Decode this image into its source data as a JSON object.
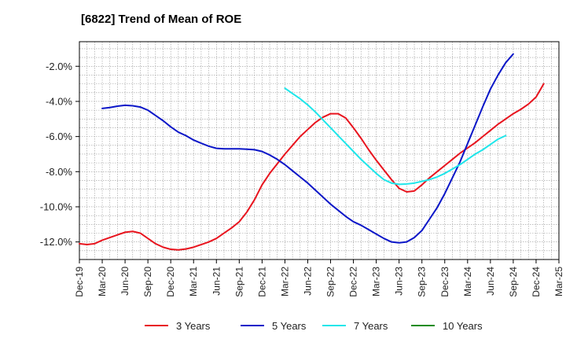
{
  "chart_data": {
    "type": "line",
    "title": "[6822]  Trend of Mean of ROE",
    "xlabel": "",
    "ylabel": "",
    "x_ticks": [
      "Dec-19",
      "Mar-20",
      "Jun-20",
      "Sep-20",
      "Dec-20",
      "Mar-21",
      "Jun-21",
      "Sep-21",
      "Dec-21",
      "Mar-22",
      "Jun-22",
      "Sep-22",
      "Dec-22",
      "Mar-23",
      "Jun-23",
      "Sep-23",
      "Dec-23",
      "Mar-24",
      "Jun-24",
      "Sep-24",
      "Dec-24",
      "Mar-25"
    ],
    "y_ticks": [
      "-2.0%",
      "-4.0%",
      "-6.0%",
      "-8.0%",
      "-10.0%",
      "-12.0%"
    ],
    "y_tick_values": [
      -2,
      -4,
      -6,
      -8,
      -10,
      -12
    ],
    "ylim": [
      -13.0,
      -0.6
    ],
    "grid": true,
    "legend_position": "bottom",
    "series": [
      {
        "name": "3 Years",
        "color": "#e8141e",
        "points": [
          [
            "Dec-19",
            -12.1
          ],
          [
            "Jan-20",
            -12.15
          ],
          [
            "Feb-20",
            -12.1
          ],
          [
            "Mar-20",
            -11.9
          ],
          [
            "Apr-20",
            -11.75
          ],
          [
            "May-20",
            -11.6
          ],
          [
            "Jun-20",
            -11.45
          ],
          [
            "Jul-20",
            -11.4
          ],
          [
            "Aug-20",
            -11.5
          ],
          [
            "Sep-20",
            -11.8
          ],
          [
            "Oct-20",
            -12.1
          ],
          [
            "Nov-20",
            -12.3
          ],
          [
            "Dec-20",
            -12.42
          ],
          [
            "Jan-21",
            -12.45
          ],
          [
            "Feb-21",
            -12.4
          ],
          [
            "Mar-21",
            -12.3
          ],
          [
            "Apr-21",
            -12.15
          ],
          [
            "May-21",
            -12.0
          ],
          [
            "Jun-21",
            -11.8
          ],
          [
            "Jul-21",
            -11.5
          ],
          [
            "Aug-21",
            -11.2
          ],
          [
            "Sep-21",
            -10.85
          ],
          [
            "Oct-21",
            -10.3
          ],
          [
            "Nov-21",
            -9.6
          ],
          [
            "Dec-21",
            -8.75
          ],
          [
            "Jan-22",
            -8.1
          ],
          [
            "Feb-22",
            -7.55
          ],
          [
            "Mar-22",
            -7.0
          ],
          [
            "Apr-22",
            -6.5
          ],
          [
            "May-22",
            -6.0
          ],
          [
            "Jun-22",
            -5.6
          ],
          [
            "Jul-22",
            -5.2
          ],
          [
            "Aug-22",
            -4.9
          ],
          [
            "Sep-22",
            -4.7
          ],
          [
            "Oct-22",
            -4.7
          ],
          [
            "Nov-22",
            -4.95
          ],
          [
            "Dec-22",
            -5.5
          ],
          [
            "Jan-23",
            -6.1
          ],
          [
            "Feb-23",
            -6.75
          ],
          [
            "Mar-23",
            -7.35
          ],
          [
            "Apr-23",
            -7.9
          ],
          [
            "May-23",
            -8.45
          ],
          [
            "Jun-23",
            -8.95
          ],
          [
            "Jul-23",
            -9.15
          ],
          [
            "Aug-23",
            -9.1
          ],
          [
            "Sep-23",
            -8.75
          ],
          [
            "Oct-23",
            -8.35
          ],
          [
            "Nov-23",
            -8.0
          ],
          [
            "Dec-23",
            -7.65
          ],
          [
            "Jan-24",
            -7.3
          ],
          [
            "Feb-24",
            -6.95
          ],
          [
            "Mar-24",
            -6.65
          ],
          [
            "Apr-24",
            -6.35
          ],
          [
            "May-24",
            -6.0
          ],
          [
            "Jun-24",
            -5.65
          ],
          [
            "Jul-24",
            -5.3
          ],
          [
            "Aug-24",
            -5.0
          ],
          [
            "Sep-24",
            -4.7
          ],
          [
            "Oct-24",
            -4.45
          ],
          [
            "Nov-24",
            -4.15
          ],
          [
            "Dec-24",
            -3.75
          ],
          [
            "Jan-25",
            -3.0
          ]
        ]
      },
      {
        "name": "5 Years",
        "color": "#0b16c8",
        "points": [
          [
            "Mar-20",
            -4.4
          ],
          [
            "Apr-20",
            -4.35
          ],
          [
            "May-20",
            -4.27
          ],
          [
            "Jun-20",
            -4.22
          ],
          [
            "Jul-20",
            -4.25
          ],
          [
            "Aug-20",
            -4.32
          ],
          [
            "Sep-20",
            -4.5
          ],
          [
            "Oct-20",
            -4.8
          ],
          [
            "Nov-20",
            -5.1
          ],
          [
            "Dec-20",
            -5.45
          ],
          [
            "Jan-21",
            -5.75
          ],
          [
            "Feb-21",
            -5.95
          ],
          [
            "Mar-21",
            -6.2
          ],
          [
            "Apr-21",
            -6.38
          ],
          [
            "May-21",
            -6.55
          ],
          [
            "Jun-21",
            -6.67
          ],
          [
            "Jul-21",
            -6.7
          ],
          [
            "Aug-21",
            -6.7
          ],
          [
            "Sep-21",
            -6.7
          ],
          [
            "Oct-21",
            -6.72
          ],
          [
            "Nov-21",
            -6.75
          ],
          [
            "Dec-21",
            -6.85
          ],
          [
            "Jan-22",
            -7.05
          ],
          [
            "Feb-22",
            -7.3
          ],
          [
            "Mar-22",
            -7.6
          ],
          [
            "Apr-22",
            -7.95
          ],
          [
            "May-22",
            -8.3
          ],
          [
            "Jun-22",
            -8.65
          ],
          [
            "Jul-22",
            -9.05
          ],
          [
            "Aug-22",
            -9.45
          ],
          [
            "Sep-22",
            -9.85
          ],
          [
            "Oct-22",
            -10.2
          ],
          [
            "Nov-22",
            -10.55
          ],
          [
            "Dec-22",
            -10.85
          ],
          [
            "Jan-23",
            -11.05
          ],
          [
            "Feb-23",
            -11.3
          ],
          [
            "Mar-23",
            -11.55
          ],
          [
            "Apr-23",
            -11.8
          ],
          [
            "May-23",
            -12.0
          ],
          [
            "Jun-23",
            -12.05
          ],
          [
            "Jul-23",
            -12.0
          ],
          [
            "Aug-23",
            -11.75
          ],
          [
            "Sep-23",
            -11.35
          ],
          [
            "Oct-23",
            -10.7
          ],
          [
            "Nov-23",
            -10.05
          ],
          [
            "Dec-23",
            -9.25
          ],
          [
            "Jan-24",
            -8.35
          ],
          [
            "Feb-24",
            -7.45
          ],
          [
            "Mar-24",
            -6.4
          ],
          [
            "Apr-24",
            -5.35
          ],
          [
            "May-24",
            -4.3
          ],
          [
            "Jun-24",
            -3.3
          ],
          [
            "Jul-24",
            -2.5
          ],
          [
            "Aug-24",
            -1.8
          ],
          [
            "Sep-24",
            -1.3
          ]
        ]
      },
      {
        "name": "7 Years",
        "color": "#1ee6ea",
        "points": [
          [
            "Mar-22",
            -3.25
          ],
          [
            "Apr-22",
            -3.55
          ],
          [
            "May-22",
            -3.85
          ],
          [
            "Jun-22",
            -4.2
          ],
          [
            "Jul-22",
            -4.6
          ],
          [
            "Aug-22",
            -5.05
          ],
          [
            "Sep-22",
            -5.5
          ],
          [
            "Oct-22",
            -5.95
          ],
          [
            "Nov-22",
            -6.4
          ],
          [
            "Dec-22",
            -6.85
          ],
          [
            "Jan-23",
            -7.3
          ],
          [
            "Feb-23",
            -7.7
          ],
          [
            "Mar-23",
            -8.1
          ],
          [
            "Apr-23",
            -8.45
          ],
          [
            "May-23",
            -8.65
          ],
          [
            "Jun-23",
            -8.72
          ],
          [
            "Jul-23",
            -8.7
          ],
          [
            "Aug-23",
            -8.65
          ],
          [
            "Sep-23",
            -8.55
          ],
          [
            "Oct-23",
            -8.45
          ],
          [
            "Nov-23",
            -8.3
          ],
          [
            "Dec-23",
            -8.1
          ],
          [
            "Jan-24",
            -7.85
          ],
          [
            "Feb-24",
            -7.6
          ],
          [
            "Mar-24",
            -7.3
          ],
          [
            "Apr-24",
            -7.0
          ],
          [
            "May-24",
            -6.75
          ],
          [
            "Jun-24",
            -6.45
          ],
          [
            "Jul-24",
            -6.15
          ],
          [
            "Aug-24",
            -5.95
          ]
        ]
      },
      {
        "name": "10 Years",
        "color": "#1a8c1a",
        "points": []
      }
    ]
  }
}
